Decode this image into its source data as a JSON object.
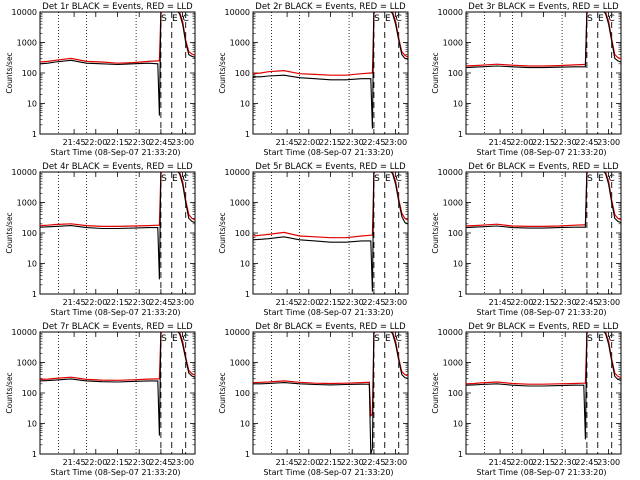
{
  "figure": {
    "common_xlabel": "Start Time (08-Sep-07 21:33:20)",
    "ylabel": "Counts/sec",
    "legend_note": "BLACK = Events, RED = LLD",
    "flags": [
      "S",
      "E",
      "C"
    ]
  },
  "colors": {
    "events": "#000000",
    "lld": "#e00000",
    "axis": "#000000"
  },
  "chart_data": [
    {
      "type": "line",
      "title": "Det 1r BLACK = Events, RED = LLD",
      "xticks": [
        "21:45",
        "22:00",
        "22:15",
        "22:30",
        "22:45",
        "23:00"
      ],
      "yticks": [
        "1",
        "10",
        "100",
        "1000",
        "10000"
      ],
      "ylog": true,
      "ylim": [
        1,
        10000
      ],
      "series": [
        {
          "name": "Events",
          "x": [
            0,
            5,
            10,
            20,
            30,
            40,
            50,
            60,
            70,
            76,
            77,
            78,
            80,
            82,
            84,
            86,
            88,
            90,
            92,
            94,
            96,
            98,
            100
          ],
          "y": [
            200,
            210,
            230,
            260,
            210,
            200,
            190,
            200,
            210,
            200,
            4,
            12000,
            12000,
            12000,
            12000,
            12000,
            11000,
            9000,
            4000,
            1000,
            400,
            350,
            330
          ]
        },
        {
          "name": "LLD",
          "x": [
            0,
            5,
            10,
            20,
            30,
            40,
            50,
            60,
            70,
            76,
            77,
            78,
            80,
            82,
            84,
            86,
            88,
            90,
            92,
            94,
            96,
            98,
            100
          ],
          "y": [
            230,
            240,
            260,
            300,
            240,
            230,
            210,
            220,
            240,
            250,
            250,
            9000,
            12000,
            12000,
            12000,
            12000,
            12000,
            10000,
            5000,
            1200,
            500,
            420,
            380
          ]
        }
      ]
    },
    {
      "type": "line",
      "title": "Det 2r BLACK = Events, RED = LLD",
      "xticks": [
        "21:45",
        "22:00",
        "22:15",
        "22:30",
        "22:45",
        "23:00"
      ],
      "yticks": [
        "1",
        "10",
        "100",
        "1000",
        "10000"
      ],
      "ylog": true,
      "ylim": [
        1,
        10000
      ],
      "series": [
        {
          "name": "Events",
          "x": [
            0,
            5,
            10,
            20,
            30,
            40,
            50,
            60,
            70,
            76,
            77,
            78,
            80,
            82,
            84,
            86,
            88,
            90,
            92,
            94,
            96,
            98,
            100
          ],
          "y": [
            75,
            75,
            80,
            85,
            70,
            65,
            60,
            60,
            65,
            65,
            1.5,
            12000,
            12000,
            12000,
            12000,
            12000,
            11000,
            9000,
            4000,
            1200,
            400,
            300,
            280
          ]
        },
        {
          "name": "LLD",
          "x": [
            0,
            5,
            10,
            20,
            30,
            40,
            50,
            60,
            70,
            76,
            77,
            78,
            80,
            82,
            84,
            86,
            88,
            90,
            92,
            94,
            96,
            98,
            100
          ],
          "y": [
            95,
            100,
            110,
            120,
            95,
            90,
            85,
            85,
            95,
            100,
            100,
            9000,
            12000,
            12000,
            12000,
            12000,
            12000,
            10000,
            5000,
            1400,
            500,
            380,
            330
          ]
        }
      ]
    },
    {
      "type": "line",
      "title": "Det 3r BLACK = Events, RED = LLD",
      "xticks": [
        "21:45",
        "22:00",
        "22:15",
        "22:30",
        "22:45",
        "23:00"
      ],
      "yticks": [
        "1",
        "10",
        "100",
        "1000",
        "10000"
      ],
      "ylog": true,
      "ylim": [
        1,
        10000
      ],
      "series": [
        {
          "name": "Events",
          "x": [
            0,
            5,
            10,
            20,
            30,
            40,
            50,
            60,
            70,
            76,
            77,
            78,
            80,
            82,
            84,
            86,
            88,
            90,
            92,
            94,
            96,
            98,
            100
          ],
          "y": [
            150,
            155,
            160,
            170,
            160,
            150,
            150,
            155,
            160,
            160,
            160,
            12000,
            12000,
            12000,
            12000,
            12000,
            11000,
            9000,
            4000,
            1100,
            300,
            250,
            230
          ]
        },
        {
          "name": "LLD",
          "x": [
            0,
            5,
            10,
            20,
            30,
            40,
            50,
            60,
            70,
            76,
            77,
            78,
            80,
            82,
            84,
            86,
            88,
            90,
            92,
            94,
            96,
            98,
            100
          ],
          "y": [
            170,
            175,
            180,
            195,
            180,
            170,
            170,
            175,
            185,
            190,
            190,
            9000,
            12000,
            12000,
            12000,
            12000,
            12000,
            10000,
            5000,
            1300,
            400,
            320,
            290
          ]
        }
      ]
    },
    {
      "type": "line",
      "title": "Det 4r BLACK = Events, RED = LLD",
      "xticks": [
        "21:45",
        "22:00",
        "22:15",
        "22:30",
        "22:45",
        "23:00"
      ],
      "yticks": [
        "1",
        "10",
        "100",
        "1000",
        "10000"
      ],
      "ylog": true,
      "ylim": [
        1,
        10000
      ],
      "series": [
        {
          "name": "Events",
          "x": [
            0,
            5,
            10,
            20,
            30,
            40,
            50,
            60,
            70,
            76,
            77,
            78,
            80,
            82,
            84,
            86,
            88,
            90,
            92,
            94,
            96,
            98,
            100
          ],
          "y": [
            155,
            160,
            165,
            175,
            150,
            140,
            140,
            145,
            150,
            150,
            3,
            12000,
            12000,
            12000,
            12000,
            12000,
            11000,
            9000,
            4000,
            1000,
            300,
            240,
            220
          ]
        },
        {
          "name": "LLD",
          "x": [
            0,
            5,
            10,
            20,
            30,
            40,
            50,
            60,
            70,
            76,
            77,
            78,
            80,
            82,
            84,
            86,
            88,
            90,
            92,
            94,
            96,
            98,
            100
          ],
          "y": [
            175,
            180,
            190,
            200,
            175,
            165,
            165,
            170,
            175,
            180,
            180,
            9000,
            12000,
            12000,
            12000,
            12000,
            12000,
            10000,
            5000,
            1200,
            400,
            300,
            270
          ]
        }
      ]
    },
    {
      "type": "line",
      "title": "Det 5r BLACK = Events, RED = LLD",
      "xticks": [
        "21:45",
        "22:00",
        "22:15",
        "22:30",
        "22:45",
        "23:00"
      ],
      "yticks": [
        "1",
        "10",
        "100",
        "1000",
        "10000"
      ],
      "ylog": true,
      "ylim": [
        1,
        10000
      ],
      "series": [
        {
          "name": "Events",
          "x": [
            0,
            5,
            10,
            20,
            30,
            40,
            50,
            60,
            70,
            76,
            77,
            78,
            80,
            82,
            84,
            86,
            88,
            90,
            92,
            94,
            96,
            98,
            100
          ],
          "y": [
            60,
            62,
            65,
            75,
            60,
            55,
            50,
            50,
            55,
            55,
            1.2,
            12000,
            12000,
            12000,
            12000,
            12000,
            11000,
            9000,
            4000,
            1100,
            350,
            220,
            200
          ]
        },
        {
          "name": "LLD",
          "x": [
            0,
            5,
            10,
            20,
            30,
            40,
            50,
            60,
            70,
            76,
            77,
            78,
            80,
            82,
            84,
            86,
            88,
            90,
            92,
            94,
            96,
            98,
            100
          ],
          "y": [
            80,
            85,
            90,
            105,
            80,
            75,
            70,
            70,
            80,
            85,
            85,
            9000,
            12000,
            12000,
            12000,
            12000,
            12000,
            10000,
            5000,
            1300,
            450,
            300,
            260
          ]
        }
      ]
    },
    {
      "type": "line",
      "title": "Det 6r BLACK = Events, RED = LLD",
      "xticks": [
        "21:45",
        "22:00",
        "22:15",
        "22:30",
        "22:45",
        "23:00"
      ],
      "yticks": [
        "1",
        "10",
        "100",
        "1000",
        "10000"
      ],
      "ylog": true,
      "ylim": [
        1,
        10000
      ],
      "series": [
        {
          "name": "Events",
          "x": [
            0,
            5,
            10,
            20,
            30,
            40,
            50,
            60,
            70,
            76,
            77,
            78,
            80,
            82,
            84,
            86,
            88,
            90,
            92,
            94,
            96,
            98,
            100
          ],
          "y": [
            150,
            155,
            160,
            170,
            150,
            145,
            145,
            150,
            155,
            155,
            155,
            12000,
            12000,
            12000,
            12000,
            12000,
            11000,
            9000,
            4000,
            1000,
            300,
            240,
            220
          ]
        },
        {
          "name": "LLD",
          "x": [
            0,
            5,
            10,
            20,
            30,
            40,
            50,
            60,
            70,
            76,
            77,
            78,
            80,
            82,
            84,
            86,
            88,
            90,
            92,
            94,
            96,
            98,
            100
          ],
          "y": [
            170,
            175,
            180,
            195,
            170,
            165,
            165,
            170,
            180,
            185,
            185,
            9000,
            12000,
            12000,
            12000,
            12000,
            12000,
            10000,
            5000,
            1200,
            400,
            300,
            270
          ]
        }
      ]
    },
    {
      "type": "line",
      "title": "Det 7r BLACK = Events, RED = LLD",
      "xticks": [
        "21:45",
        "22:00",
        "22:15",
        "22:30",
        "22:45",
        "23:00"
      ],
      "yticks": [
        "1",
        "10",
        "100",
        "1000",
        "10000"
      ],
      "ylog": true,
      "ylim": [
        1,
        10000
      ],
      "series": [
        {
          "name": "Events",
          "x": [
            0,
            5,
            10,
            20,
            30,
            40,
            50,
            60,
            70,
            76,
            77,
            78,
            80,
            82,
            84,
            86,
            88,
            90,
            92,
            94,
            96,
            98,
            100
          ],
          "y": [
            250,
            255,
            265,
            290,
            250,
            235,
            230,
            240,
            250,
            250,
            4,
            12000,
            12000,
            12000,
            12000,
            12000,
            11000,
            9000,
            4000,
            1300,
            450,
            360,
            330
          ]
        },
        {
          "name": "LLD",
          "x": [
            0,
            5,
            10,
            20,
            30,
            40,
            50,
            60,
            70,
            76,
            77,
            78,
            80,
            82,
            84,
            86,
            88,
            90,
            92,
            94,
            96,
            98,
            100
          ],
          "y": [
            280,
            285,
            300,
            330,
            280,
            265,
            260,
            270,
            285,
            290,
            290,
            9000,
            12000,
            12000,
            12000,
            12000,
            12000,
            10000,
            5000,
            1500,
            550,
            430,
            390
          ]
        }
      ]
    },
    {
      "type": "line",
      "title": "Det 8r BLACK = Events, RED = LLD",
      "xticks": [
        "21:45",
        "22:00",
        "22:15",
        "22:30",
        "22:45",
        "23:00"
      ],
      "yticks": [
        "1",
        "10",
        "100",
        "1000",
        "10000"
      ],
      "ylog": true,
      "ylim": [
        1,
        10000
      ],
      "series": [
        {
          "name": "Events",
          "x": [
            0,
            5,
            10,
            20,
            30,
            40,
            50,
            60,
            70,
            75,
            76,
            77,
            78,
            80,
            82,
            84,
            86,
            88,
            90,
            92,
            94,
            96,
            98,
            100
          ],
          "y": [
            200,
            200,
            205,
            220,
            200,
            190,
            185,
            190,
            195,
            195,
            1,
            1.5,
            12000,
            12000,
            12000,
            12000,
            12000,
            11000,
            9000,
            4000,
            1200,
            400,
            320,
            300
          ]
        },
        {
          "name": "LLD",
          "x": [
            0,
            5,
            10,
            20,
            30,
            40,
            50,
            60,
            70,
            75,
            76,
            77,
            78,
            80,
            82,
            84,
            86,
            88,
            90,
            92,
            94,
            96,
            98,
            100
          ],
          "y": [
            220,
            225,
            230,
            250,
            225,
            210,
            205,
            210,
            220,
            225,
            18,
            20,
            9000,
            12000,
            12000,
            12000,
            12000,
            12000,
            10000,
            5000,
            1400,
            500,
            400,
            360
          ]
        }
      ]
    },
    {
      "type": "line",
      "title": "Det 9r BLACK = Events, RED = LLD",
      "xticks": [
        "21:45",
        "22:00",
        "22:15",
        "22:30",
        "22:45",
        "23:00"
      ],
      "yticks": [
        "1",
        "10",
        "100",
        "1000",
        "10000"
      ],
      "ylog": true,
      "ylim": [
        1,
        10000
      ],
      "series": [
        {
          "name": "Events",
          "x": [
            0,
            5,
            10,
            20,
            30,
            40,
            50,
            60,
            70,
            76,
            77,
            78,
            80,
            82,
            84,
            86,
            88,
            90,
            92,
            94,
            96,
            98,
            100
          ],
          "y": [
            180,
            185,
            190,
            200,
            180,
            170,
            170,
            175,
            180,
            180,
            3,
            12000,
            12000,
            12000,
            12000,
            12000,
            11000,
            9000,
            4000,
            1100,
            350,
            280,
            260
          ]
        },
        {
          "name": "LLD",
          "x": [
            0,
            5,
            10,
            20,
            30,
            40,
            50,
            60,
            70,
            76,
            77,
            78,
            80,
            82,
            84,
            86,
            88,
            90,
            92,
            94,
            96,
            98,
            100
          ],
          "y": [
            200,
            205,
            215,
            230,
            205,
            195,
            195,
            200,
            205,
            210,
            210,
            9000,
            12000,
            12000,
            12000,
            12000,
            12000,
            10000,
            5000,
            1300,
            450,
            350,
            320
          ]
        }
      ]
    }
  ]
}
